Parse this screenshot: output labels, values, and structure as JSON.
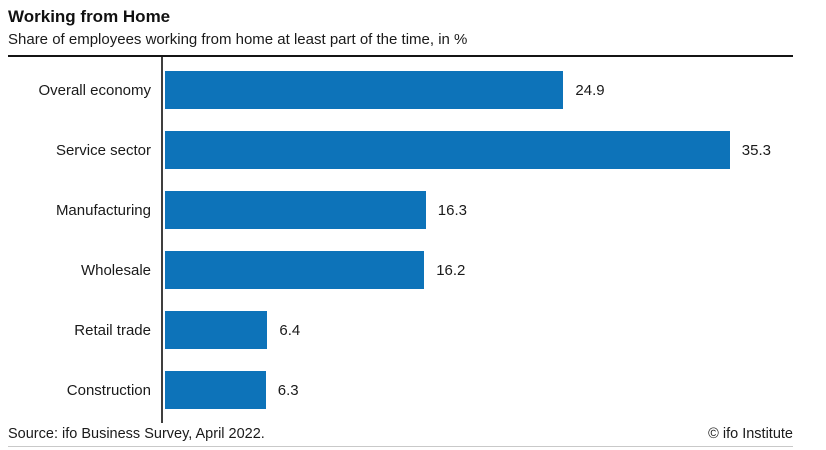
{
  "header": {
    "title": "Working from Home",
    "subtitle": "Share of employees working from home at least part of the time, in %"
  },
  "chart_data": {
    "type": "bar",
    "orientation": "horizontal",
    "title": "Working from Home",
    "subtitle": "Share of employees working from home at least part of the time, in %",
    "categories": [
      "Overall economy",
      "Service sector",
      "Manufacturing",
      "Wholesale",
      "Retail trade",
      "Construction"
    ],
    "values": [
      24.9,
      35.3,
      16.3,
      16.2,
      6.4,
      6.3
    ],
    "value_labels": [
      "24.9",
      "35.3",
      "16.3",
      "16.2",
      "6.4",
      "6.3"
    ],
    "xlabel": "",
    "ylabel": "",
    "xlim": [
      0,
      39.4
    ],
    "grid": false,
    "legend": false,
    "bar_color": "#0d73b9",
    "axis_color": "#3f3f3f"
  },
  "footer": {
    "source": "Source: ifo Business Survey, April 2022.",
    "copyright": "© ifo Institute"
  }
}
